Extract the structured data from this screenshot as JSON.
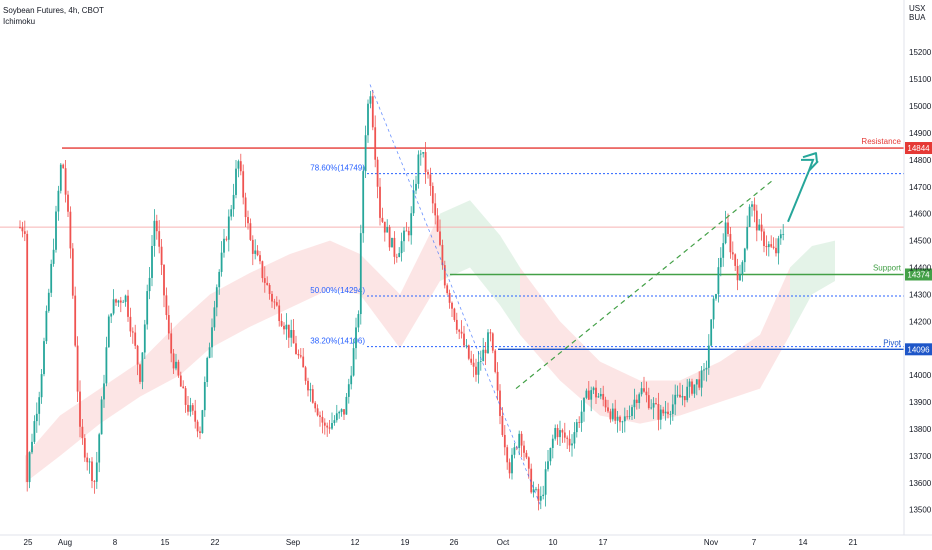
{
  "header": {
    "title": "Soybean Futures, 4h, CBOT",
    "indicator": "Ichimoku",
    "currency_line1": "USX",
    "currency_line2": "BUA"
  },
  "colors": {
    "up": "#26a69a",
    "down": "#ef5350",
    "resistance": "#e53935",
    "support": "#43a047",
    "pivot": "#1e56c8",
    "fib": "#2962ff",
    "arrow": "#26a69a",
    "cloud_bull": "#dff1e4",
    "cloud_bear": "#fbe1e1"
  },
  "chart_data": {
    "type": "candlestick",
    "title": "Soybean Futures, 4h, CBOT",
    "ylim": [
      13450,
      15190
    ],
    "y_ticks": [
      15200,
      15100,
      15000,
      14900,
      14800,
      14700,
      14600,
      14500,
      14400,
      14300,
      14200,
      14000,
      13900,
      13800,
      13700,
      13600,
      13500
    ],
    "x_ticks": [
      "25",
      "Aug",
      "8",
      "15",
      "22",
      "Sep",
      "12",
      "19",
      "26",
      "Oct",
      "10",
      "17",
      "Nov",
      "7",
      "14",
      "21"
    ],
    "current_price": 14550,
    "levels": [
      {
        "label": "Resistance",
        "value": 14844,
        "badge": "14844"
      },
      {
        "label": "Support",
        "value": 14374,
        "badge": "14374"
      },
      {
        "label": "Pivot",
        "value": 14096,
        "badge": "14096"
      }
    ],
    "fib_levels": [
      {
        "label": "78.60%(14749)",
        "value": 14749
      },
      {
        "label": "50.00%(14294)",
        "value": 14294
      },
      {
        "label": "38.20%(14106)",
        "value": 14106
      }
    ],
    "price_path": [
      [
        25,
        13520
      ],
      [
        30,
        13720
      ],
      [
        40,
        13960
      ],
      [
        50,
        14350
      ],
      [
        62,
        14820
      ],
      [
        70,
        14500
      ],
      [
        80,
        13780
      ],
      [
        95,
        13600
      ],
      [
        110,
        14250
      ],
      [
        125,
        14300
      ],
      [
        140,
        14000
      ],
      [
        155,
        14600
      ],
      [
        170,
        14100
      ],
      [
        185,
        13900
      ],
      [
        200,
        13800
      ],
      [
        215,
        14300
      ],
      [
        230,
        14600
      ],
      [
        238,
        14800
      ],
      [
        250,
        14500
      ],
      [
        270,
        14300
      ],
      [
        290,
        14150
      ],
      [
        310,
        13950
      ],
      [
        325,
        13800
      ],
      [
        345,
        13870
      ],
      [
        358,
        14200
      ],
      [
        364,
        14850
      ],
      [
        370,
        15080
      ],
      [
        380,
        14600
      ],
      [
        395,
        14450
      ],
      [
        410,
        14550
      ],
      [
        420,
        14850
      ],
      [
        430,
        14700
      ],
      [
        445,
        14350
      ],
      [
        460,
        14150
      ],
      [
        475,
        14000
      ],
      [
        490,
        14150
      ],
      [
        500,
        13850
      ],
      [
        510,
        13650
      ],
      [
        520,
        13800
      ],
      [
        530,
        13600
      ],
      [
        540,
        13520
      ],
      [
        555,
        13800
      ],
      [
        570,
        13750
      ],
      [
        590,
        13950
      ],
      [
        605,
        13900
      ],
      [
        620,
        13800
      ],
      [
        640,
        13950
      ],
      [
        660,
        13850
      ],
      [
        690,
        13950
      ],
      [
        705,
        14000
      ],
      [
        715,
        14300
      ],
      [
        725,
        14550
      ],
      [
        740,
        14350
      ],
      [
        750,
        14650
      ],
      [
        760,
        14520
      ],
      [
        775,
        14450
      ],
      [
        785,
        14550
      ]
    ],
    "cloud": [
      [
        25,
        13700,
        13600
      ],
      [
        60,
        13850,
        13700
      ],
      [
        100,
        13950,
        13820
      ],
      [
        140,
        14050,
        13920
      ],
      [
        180,
        14200,
        14000
      ],
      [
        210,
        14300,
        14100
      ],
      [
        250,
        14380,
        14180
      ],
      [
        290,
        14450,
        14250
      ],
      [
        330,
        14500,
        14320
      ],
      [
        360,
        14450,
        14300
      ],
      [
        400,
        14300,
        14100
      ],
      [
        440,
        14600,
        14350
      ],
      [
        470,
        14650,
        14400
      ],
      [
        500,
        14520,
        14260
      ],
      [
        520,
        14400,
        14150
      ],
      [
        560,
        14200,
        13980
      ],
      [
        600,
        14050,
        13850
      ],
      [
        640,
        13980,
        13820
      ],
      [
        680,
        13980,
        13850
      ],
      [
        720,
        14050,
        13900
      ],
      [
        760,
        14150,
        13950
      ],
      [
        790,
        14400,
        14150
      ],
      [
        812,
        14480,
        14300
      ],
      [
        835,
        14500,
        14350
      ]
    ]
  }
}
